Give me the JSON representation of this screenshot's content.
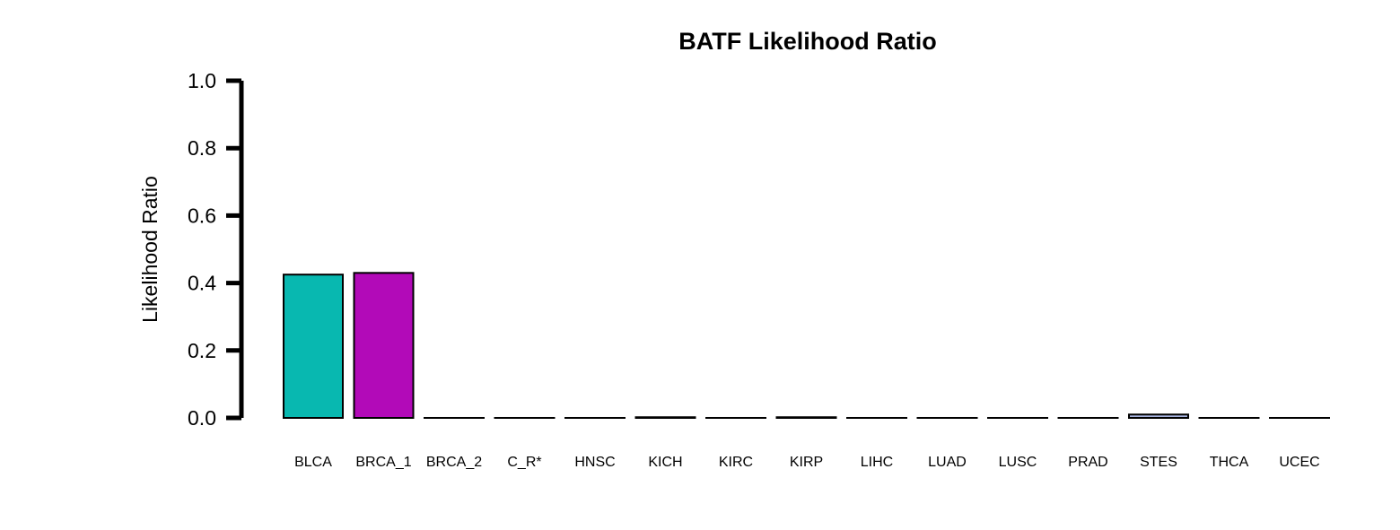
{
  "chart_data": {
    "type": "bar",
    "title": "BATF Likelihood Ratio",
    "xlabel": "",
    "ylabel": "Likelihood Ratio",
    "ylim": [
      0,
      1
    ],
    "yticks": [
      "0.0",
      "0.2",
      "0.4",
      "0.6",
      "0.8",
      "1.0"
    ],
    "categories": [
      "BLCA",
      "BRCA_1",
      "BRCA_2",
      "C_R*",
      "HNSC",
      "KICH",
      "KIRC",
      "KIRP",
      "LIHC",
      "LUAD",
      "LUSC",
      "PRAD",
      "STES",
      "THCA",
      "UCEC"
    ],
    "values": [
      0.425,
      0.43,
      0.0,
      0.0,
      0.0,
      0.002,
      0.0,
      0.002,
      0.0,
      0.0,
      0.0,
      0.0,
      0.01,
      0.0,
      0.0
    ],
    "colors": [
      "#08b8b0",
      "#b20ab8",
      "#ffffff",
      "#ffffff",
      "#ffffff",
      "#ffffff",
      "#ffffff",
      "#ffffff",
      "#ffffff",
      "#ffffff",
      "#ffffff",
      "#ffffff",
      "#a8b4e0",
      "#ffffff",
      "#ffffff"
    ],
    "grid": false,
    "legend": "none"
  }
}
